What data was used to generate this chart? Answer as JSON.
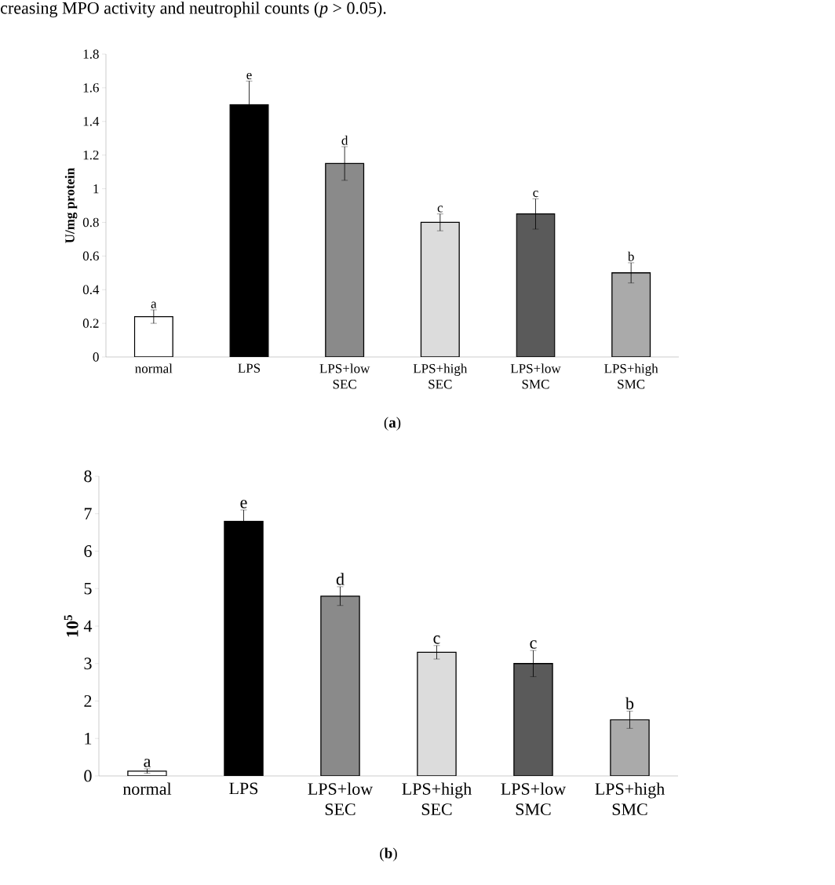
{
  "chart_data": [
    {
      "type": "bar",
      "categories": [
        "normal",
        "LPS",
        "LPS+low SEC",
        "LPS+high SEC",
        "LPS+low SMC",
        "LPS+high SMC"
      ],
      "values": [
        0.24,
        1.5,
        1.15,
        0.8,
        0.85,
        0.5
      ],
      "errors": [
        0.04,
        0.14,
        0.1,
        0.05,
        0.09,
        0.06
      ],
      "colors": [
        "#ffffff",
        "#000000",
        "#8a8a8a",
        "#dcdcdc",
        "#5a5a5a",
        "#aaaaaa"
      ],
      "value_labels": [
        "a",
        "e",
        "d",
        "c",
        "c",
        "b"
      ],
      "ylabel": "U/mg protein",
      "ylim": [
        0,
        1.8
      ],
      "yticks": [
        0,
        0.2,
        0.4,
        0.6,
        0.8,
        1,
        1.2,
        1.4,
        1.6,
        1.8
      ],
      "grid": false,
      "annotations": [
        "creasing MPO activity and neutrophil counts (*p* > 0.05).",
        "(**a**)"
      ]
    },
    {
      "type": "bar",
      "categories": [
        "normal",
        "LPS",
        "LPS+low SEC",
        "LPS+high SEC",
        "LPS+low SMC",
        "LPS+high SMC"
      ],
      "values": [
        0.13,
        6.8,
        4.8,
        3.3,
        3.0,
        1.5
      ],
      "errors": [
        0.06,
        0.3,
        0.25,
        0.18,
        0.35,
        0.23
      ],
      "colors": [
        "#ffffff",
        "#000000",
        "#8a8a8a",
        "#dcdcdc",
        "#5a5a5a",
        "#aaaaaa"
      ],
      "value_labels": [
        "a",
        "e",
        "d",
        "c",
        "c",
        "b"
      ],
      "ylabel": "10$^{5}$",
      "ylim": [
        0,
        8
      ],
      "yticks": [
        0,
        1,
        2,
        3,
        4,
        5,
        6,
        7,
        8
      ],
      "grid": false,
      "annotations": [
        "(**b**)"
      ]
    }
  ]
}
